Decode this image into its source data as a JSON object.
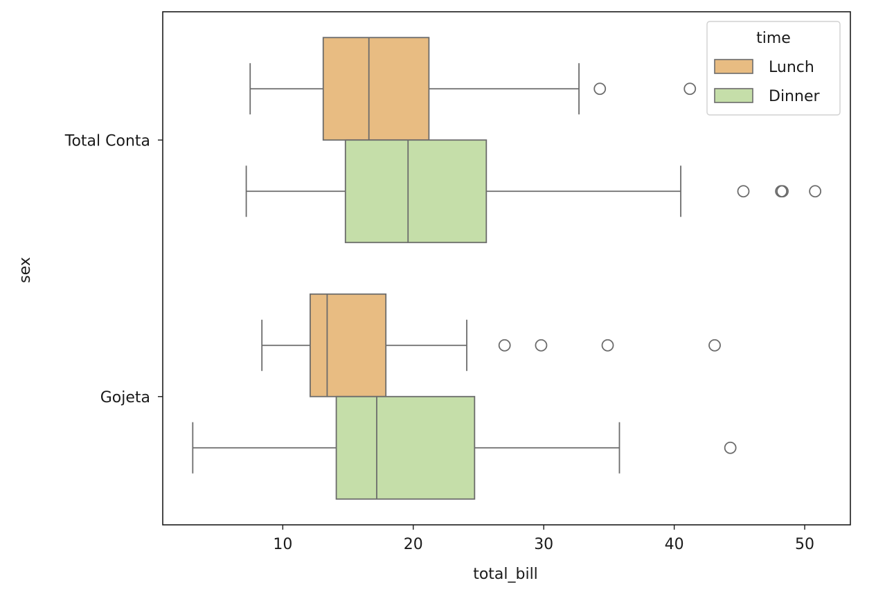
{
  "chart_data": {
    "type": "box",
    "orientation": "horizontal",
    "title": "",
    "xlabel": "total_bill",
    "ylabel": "sex",
    "xlim": [
      0.8,
      53.5
    ],
    "xticks": [
      10,
      20,
      30,
      40,
      50
    ],
    "categories": [
      "Total Conta",
      "Gojeta"
    ],
    "legend": {
      "title": "time",
      "placement": "upper-right"
    },
    "grid": false,
    "series": [
      {
        "name": "Lunch",
        "color": "#e8bc82",
        "boxes": [
          {
            "category": "Total Conta",
            "whisker_low": 7.5,
            "q1": 13.1,
            "median": 16.6,
            "q3": 21.2,
            "whisker_high": 32.7,
            "outliers": [
              34.3,
              41.2
            ]
          },
          {
            "category": "Gojeta",
            "whisker_low": 8.4,
            "q1": 12.1,
            "median": 13.4,
            "q3": 17.9,
            "whisker_high": 24.1,
            "outliers": [
              27.0,
              29.8,
              34.9,
              43.1
            ]
          }
        ]
      },
      {
        "name": "Dinner",
        "color": "#c5dea9",
        "boxes": [
          {
            "category": "Total Conta",
            "whisker_low": 7.2,
            "q1": 14.8,
            "median": 19.6,
            "q3": 25.6,
            "whisker_high": 40.5,
            "outliers": [
              45.3,
              48.2,
              48.3,
              50.8
            ]
          },
          {
            "category": "Gojeta",
            "whisker_low": 3.1,
            "q1": 14.1,
            "median": 17.2,
            "q3": 24.7,
            "whisker_high": 35.8,
            "outliers": [
              44.3
            ]
          }
        ]
      }
    ]
  }
}
